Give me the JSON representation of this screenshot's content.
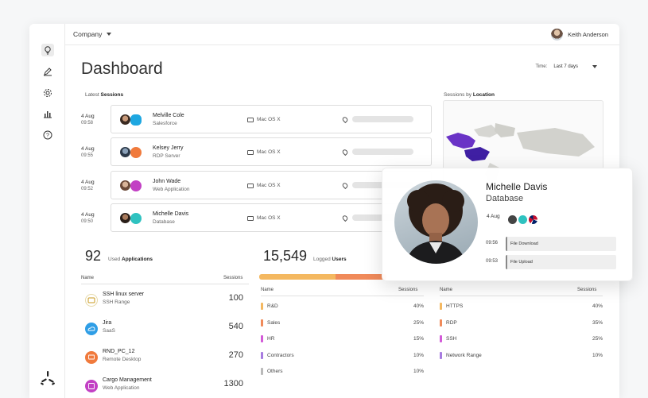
{
  "topbar": {
    "company": "Company",
    "user_name": "Keith Anderson"
  },
  "page": {
    "title": "Dashboard",
    "time_label": "Time:",
    "time_value": "Last 7 days"
  },
  "sessions_section": {
    "label_prefix": "Latest",
    "label_bold": "Sessions"
  },
  "sessions": [
    {
      "date": "4 Aug",
      "time": "09:58",
      "name": "Melville Cole",
      "sub": "Salesforce",
      "os": "Mac OS X"
    },
    {
      "date": "4 Aug",
      "time": "09:55",
      "name": "Kelsey Jerry",
      "sub": "RDP Server",
      "os": "Mac OS X"
    },
    {
      "date": "4 Aug",
      "time": "09:52",
      "name": "John Wade",
      "sub": "Web Application",
      "os": "Mac OS X"
    },
    {
      "date": "4 Aug",
      "time": "09:50",
      "name": "Michelle Davis",
      "sub": "Database",
      "os": "Mac OS X"
    }
  ],
  "location_section": {
    "label_prefix": "Sessions by",
    "label_bold": "Location"
  },
  "applications": {
    "count": "92",
    "label_prefix": "Used",
    "label_bold": "Applications",
    "col_name": "Name",
    "col_sessions": "Sessions",
    "rows": [
      {
        "name": "SSH linux server",
        "sub": "SSH Range",
        "sessions": "100",
        "color": "#c99a1e"
      },
      {
        "name": "Jira",
        "sub": "SaaS",
        "sessions": "540",
        "color": "#2f9ee6"
      },
      {
        "name": "RND_PC_12",
        "sub": "Remote Desktop",
        "sessions": "270",
        "color": "#f07a3c"
      },
      {
        "name": "Cargo Management",
        "sub": "Web Application",
        "sessions": "1300",
        "color": "#c240c4"
      }
    ]
  },
  "users": {
    "count": "15,549",
    "label_prefix": "Logged",
    "label_bold": "Users",
    "col_name": "Name",
    "col_sessions": "Sessions",
    "rows": [
      {
        "name": "R&D",
        "pct": "40%",
        "color": "#f4b860"
      },
      {
        "name": "Sales",
        "pct": "25%",
        "color": "#f08a5a"
      },
      {
        "name": "HR",
        "pct": "15%",
        "color": "#d35ad8"
      },
      {
        "name": "Contractors",
        "pct": "10%",
        "color": "#a77be0"
      },
      {
        "name": "Others",
        "pct": "10%",
        "color": "#b9b9b9"
      }
    ],
    "bar_segments": [
      {
        "share": 0.6,
        "color": "#f4b860"
      },
      {
        "share": 0.4,
        "color": "#f08a5a"
      }
    ]
  },
  "protocols": {
    "col_name": "Name",
    "col_sessions": "Sessions",
    "rows": [
      {
        "name": "HTTPS",
        "pct": "40%",
        "color": "#f4b860"
      },
      {
        "name": "RDP",
        "pct": "35%",
        "color": "#f08a5a"
      },
      {
        "name": "SSH",
        "pct": "25%",
        "color": "#d35ad8"
      },
      {
        "name": "Network Range",
        "pct": "10%",
        "color": "#a77be0"
      }
    ]
  },
  "popup": {
    "name": "Michelle Davis",
    "sub": "Database",
    "date": "4 Aug",
    "logs": [
      {
        "time": "09:56",
        "label": "File Download"
      },
      {
        "time": "09:53",
        "label": "File Upload"
      }
    ]
  }
}
